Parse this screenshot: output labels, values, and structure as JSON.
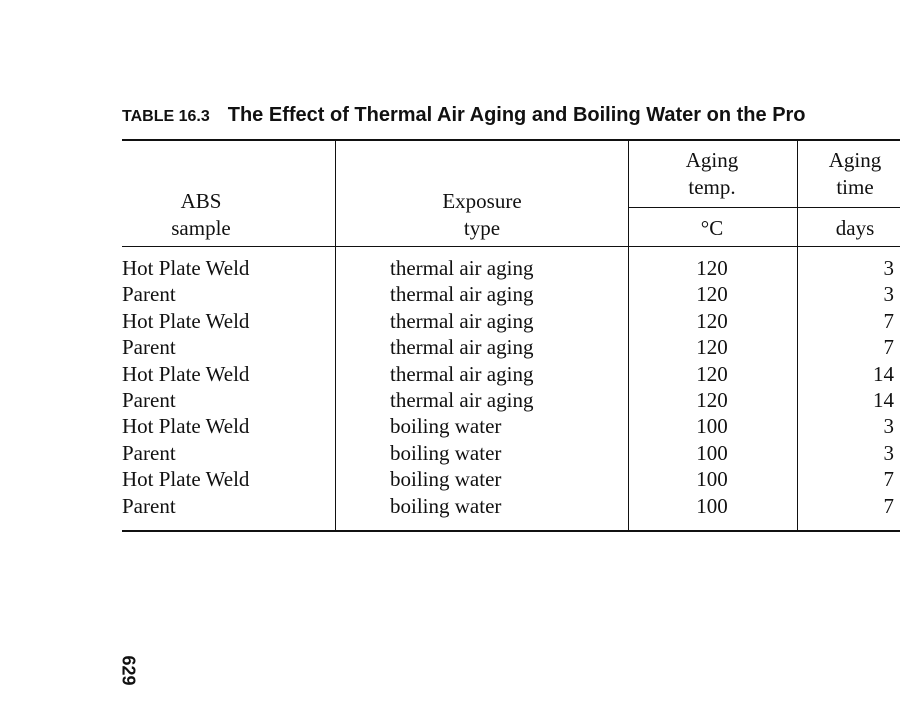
{
  "title": {
    "label": "TABLE 16.3",
    "text": "The Effect of Thermal Air Aging and Boiling Water on the Pro"
  },
  "table": {
    "columns": [
      {
        "header": [
          "ABS",
          "sample"
        ]
      },
      {
        "header": [
          "Exposure",
          "type"
        ]
      },
      {
        "header": [
          "Aging",
          "temp."
        ],
        "unit": "°C"
      },
      {
        "header": [
          "Aging",
          "time"
        ],
        "unit": "days"
      }
    ],
    "rows": [
      [
        "Hot Plate Weld",
        "thermal air aging",
        120,
        3
      ],
      [
        "Parent",
        "thermal air aging",
        120,
        3
      ],
      [
        "Hot Plate Weld",
        "thermal air aging",
        120,
        7
      ],
      [
        "Parent",
        "thermal air aging",
        120,
        7
      ],
      [
        "Hot Plate Weld",
        "thermal air aging",
        120,
        14
      ],
      [
        "Parent",
        "thermal air aging",
        120,
        14
      ],
      [
        "Hot Plate Weld",
        "boiling water",
        100,
        3
      ],
      [
        "Parent",
        "boiling water",
        100,
        3
      ],
      [
        "Hot Plate Weld",
        "boiling water",
        100,
        7
      ],
      [
        "Parent",
        "boiling water",
        100,
        7
      ]
    ]
  },
  "page_number": "629"
}
